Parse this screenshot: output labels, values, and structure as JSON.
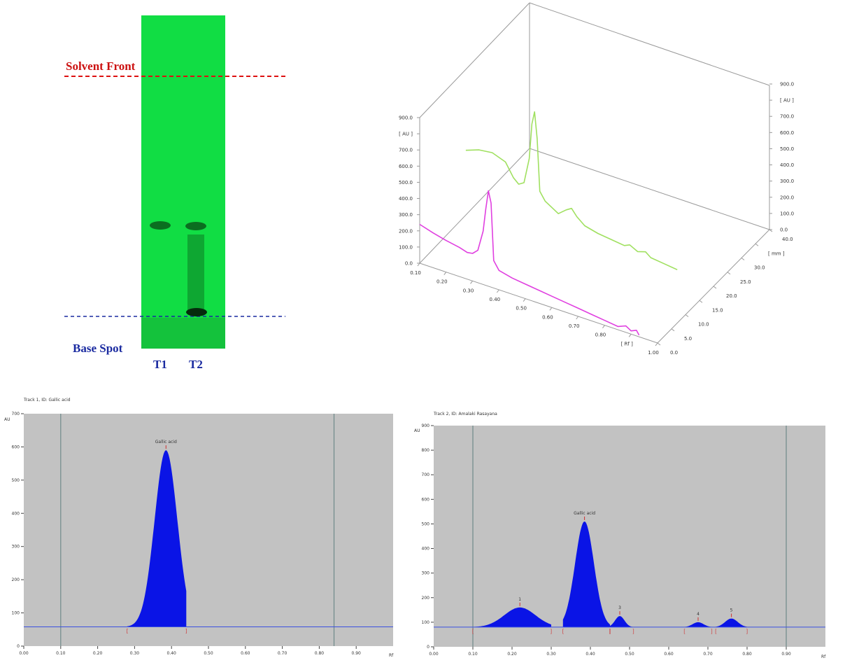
{
  "tlc_plate": {
    "solvent_front_label": "Solvent Front",
    "base_spot_label": "Base Spot",
    "track_labels": [
      "T1",
      "T2"
    ],
    "plate_color": "#11dd44",
    "solvent_front_color": "#dd1111",
    "base_line_color": "#1a2aa0"
  },
  "chart_data": [
    {
      "type": "line",
      "view": "3d",
      "xlabel": "[ Rf ]",
      "zlabel": "[ mm ]",
      "ylabel_left": "[ AU ]",
      "ylabel_right": "[ AU ]",
      "x_ticks": [
        "0.10",
        "0.20",
        "0.30",
        "0.40",
        "0.50",
        "0.60",
        "0.70",
        "0.80",
        "[ Rf ]",
        "1.00"
      ],
      "y_ticks": [
        "0.0",
        "100.0",
        "200.0",
        "300.0",
        "400.0",
        "500.0",
        "600.0",
        "700.0",
        "[ AU ]",
        "900.0"
      ],
      "y_ticks_right": [
        "0.0",
        "100.0",
        "200.0",
        "300.0",
        "400.0",
        "500.0",
        "600.0",
        "700.0",
        "[ AU ]",
        "900.0"
      ],
      "z_ticks": [
        "0.0",
        "5.0",
        "10.0",
        "15.0",
        "20.0",
        "25.0",
        "30.0",
        "[ mm ]",
        "40.0"
      ],
      "xlim": [
        0.1,
        1.0
      ],
      "ylim": [
        0,
        900
      ],
      "series": [
        {
          "color": "#e040e0",
          "track": 1,
          "x": [
            0.1,
            0.15,
            0.2,
            0.25,
            0.28,
            0.3,
            0.32,
            0.34,
            0.35,
            0.36,
            0.37,
            0.38,
            0.4,
            0.45,
            0.5,
            0.55,
            0.6,
            0.65,
            0.7,
            0.75,
            0.8,
            0.85,
            0.88,
            0.9,
            0.92,
            0.93
          ],
          "y": [
            240,
            215,
            195,
            180,
            165,
            170,
            200,
            330,
            470,
            590,
            520,
            170,
            120,
            100,
            90,
            80,
            70,
            60,
            50,
            40,
            30,
            20,
            40,
            20,
            35,
            10
          ]
        },
        {
          "color": "#a0e060",
          "track": 2,
          "x": [
            0.1,
            0.15,
            0.2,
            0.25,
            0.28,
            0.3,
            0.32,
            0.34,
            0.35,
            0.36,
            0.37,
            0.38,
            0.4,
            0.45,
            0.48,
            0.5,
            0.52,
            0.55,
            0.6,
            0.65,
            0.7,
            0.72,
            0.75,
            0.78,
            0.8,
            0.85,
            0.9
          ],
          "y": [
            400,
            430,
            440,
            410,
            330,
            300,
            320,
            480,
            700,
            780,
            620,
            300,
            250,
            200,
            240,
            260,
            220,
            180,
            160,
            150,
            140,
            155,
            130,
            145,
            120,
            110,
            100
          ]
        }
      ]
    },
    {
      "type": "area",
      "title": "Track 1, ID: Gallic acid",
      "ylabel": "AU",
      "xlabel": "Rf",
      "xlim": [
        0.0,
        1.0
      ],
      "ylim": [
        0,
        700
      ],
      "x_ticks": [
        "0.00",
        "0.10",
        "0.20",
        "0.30",
        "0.40",
        "0.50",
        "0.60",
        "0.70",
        "0.80",
        "0.90"
      ],
      "y_ticks": [
        "0",
        "100",
        "200",
        "300",
        "400",
        "500",
        "600",
        "700"
      ],
      "baseline": 58,
      "vertical_markers": [
        0.1,
        0.84
      ],
      "peaks": [
        {
          "label": "Gallic acid",
          "rf": 0.385,
          "height": 590,
          "start": 0.28,
          "end": 0.44
        }
      ]
    },
    {
      "type": "area",
      "title": "Track 2, ID: Amalaki Rasayana",
      "ylabel": "AU",
      "xlabel": "Rf",
      "xlim": [
        0.0,
        1.0
      ],
      "ylim": [
        0,
        900
      ],
      "x_ticks": [
        "0.00",
        "0.10",
        "0.20",
        "0.30",
        "0.40",
        "0.50",
        "0.60",
        "0.70",
        "0.80",
        "0.90"
      ],
      "y_ticks": [
        "0",
        "100",
        "200",
        "300",
        "400",
        "500",
        "600",
        "700",
        "800",
        "900"
      ],
      "baseline": 80,
      "vertical_markers": [
        0.1,
        0.9
      ],
      "peaks": [
        {
          "label": "1",
          "rf": 0.22,
          "height": 160,
          "start": 0.1,
          "end": 0.3
        },
        {
          "label": "Gallic acid",
          "rf": 0.385,
          "height": 510,
          "start": 0.33,
          "end": 0.45
        },
        {
          "label": "3",
          "rf": 0.475,
          "height": 125,
          "start": 0.45,
          "end": 0.51
        },
        {
          "label": "4",
          "rf": 0.675,
          "height": 100,
          "start": 0.64,
          "end": 0.71
        },
        {
          "label": "5",
          "rf": 0.76,
          "height": 115,
          "start": 0.72,
          "end": 0.8
        }
      ]
    }
  ]
}
